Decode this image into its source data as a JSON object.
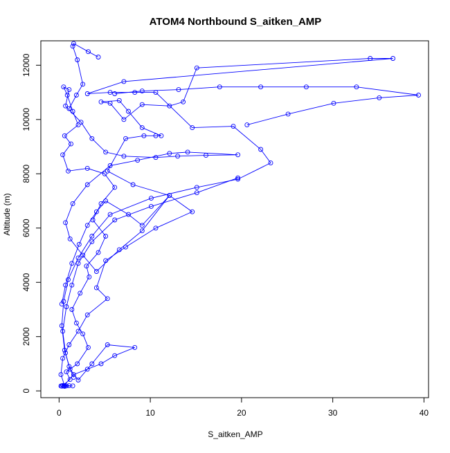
{
  "chart_data": {
    "type": "scatter",
    "title": "ATOM4 Northbound S_aitken_AMP",
    "xlabel": "S_aitken_AMP",
    "ylabel": "Altitude (m)",
    "xlim": [
      -2.0,
      40.5
    ],
    "ylim": [
      -250,
      12900
    ],
    "xticks": [
      0,
      10,
      20,
      30,
      40
    ],
    "yticks": [
      0,
      2000,
      4000,
      6000,
      8000,
      10000,
      12000
    ],
    "x_tick_labels": [
      "0",
      "10",
      "20",
      "30",
      "40"
    ],
    "y_tick_labels": [
      "0",
      "2000",
      "4000",
      "6000",
      "8000",
      "10000",
      "12000"
    ],
    "grid": false,
    "legend": "none",
    "color": "#0000ff",
    "marker": "open-circle",
    "connected": true,
    "series": [
      {
        "points": [
          [
            0.2,
            180
          ],
          [
            1.1,
            190
          ],
          [
            0.6,
            170
          ],
          [
            1.5,
            185
          ],
          [
            0.4,
            200
          ],
          [
            1.2,
            420
          ],
          [
            0.8,
            700
          ],
          [
            2.0,
            1000
          ],
          [
            3.2,
            1600
          ],
          [
            2.6,
            2100
          ],
          [
            1.9,
            2500
          ],
          [
            1.4,
            3000
          ],
          [
            2.3,
            3600
          ],
          [
            3.3,
            4200
          ],
          [
            3.0,
            4600
          ],
          [
            4.3,
            5100
          ],
          [
            5.1,
            5700
          ],
          [
            3.7,
            6300
          ],
          [
            4.6,
            6900
          ],
          [
            6.1,
            7500
          ],
          [
            5.0,
            8000
          ],
          [
            3.1,
            8200
          ],
          [
            1.0,
            8100
          ],
          [
            0.4,
            8700
          ],
          [
            1.3,
            9100
          ],
          [
            0.6,
            9400
          ],
          [
            2.1,
            9800
          ],
          [
            1.5,
            10300
          ],
          [
            0.9,
            10900
          ],
          [
            0.5,
            11200
          ],
          [
            1.1,
            11100
          ],
          [
            0.7,
            10500
          ],
          [
            2.4,
            9900
          ],
          [
            3.6,
            9300
          ],
          [
            5.1,
            8800
          ],
          [
            7.1,
            8650
          ],
          [
            10.6,
            8600
          ],
          [
            13.0,
            8650
          ],
          [
            16.1,
            8680
          ],
          [
            19.6,
            8700
          ],
          [
            14.1,
            8800
          ],
          [
            12.1,
            8750
          ],
          [
            8.6,
            8500
          ],
          [
            5.6,
            8300
          ],
          [
            3.1,
            7600
          ],
          [
            1.5,
            6900
          ],
          [
            0.7,
            6200
          ],
          [
            1.2,
            5600
          ],
          [
            2.6,
            5000
          ],
          [
            4.1,
            4400
          ],
          [
            6.6,
            5200
          ],
          [
            9.1,
            5900
          ],
          [
            12.1,
            7200
          ],
          [
            8.1,
            7600
          ],
          [
            5.3,
            8100
          ],
          [
            7.3,
            9300
          ],
          [
            9.3,
            9400
          ],
          [
            10.6,
            9400
          ],
          [
            11.2,
            9400
          ],
          [
            9.1,
            9700
          ],
          [
            7.6,
            10300
          ],
          [
            6.6,
            10700
          ],
          [
            4.6,
            10650
          ],
          [
            5.6,
            10600
          ],
          [
            7.1,
            10000
          ],
          [
            9.1,
            10550
          ],
          [
            12.1,
            10500
          ],
          [
            13.6,
            10650
          ],
          [
            15.1,
            11900
          ],
          [
            34.1,
            12250
          ],
          [
            36.6,
            12250
          ],
          [
            7.1,
            11400
          ],
          [
            3.1,
            10950
          ],
          [
            5.6,
            11000
          ],
          [
            8.3,
            11000
          ],
          [
            10.6,
            11000
          ],
          [
            14.6,
            9700
          ],
          [
            19.1,
            9750
          ],
          [
            22.1,
            8900
          ],
          [
            23.2,
            8400
          ],
          [
            19.6,
            7800
          ],
          [
            15.1,
            7500
          ],
          [
            10.1,
            7100
          ],
          [
            5.6,
            6500
          ],
          [
            3.6,
            5700
          ],
          [
            2.1,
            4900
          ],
          [
            1.0,
            4100
          ],
          [
            0.5,
            3300
          ],
          [
            0.3,
            2400
          ],
          [
            0.6,
            1500
          ],
          [
            1.2,
            800
          ],
          [
            2.1,
            400
          ],
          [
            3.6,
            1000
          ],
          [
            5.3,
            1700
          ],
          [
            8.3,
            1600
          ],
          [
            6.1,
            1300
          ],
          [
            4.6,
            1000
          ],
          [
            3.1,
            800
          ],
          [
            1.6,
            600
          ],
          [
            0.5,
            180
          ],
          [
            0.8,
            185
          ],
          [
            0.3,
            175
          ]
        ]
      },
      {
        "points": [
          [
            0.3,
            3200
          ],
          [
            0.7,
            3900
          ],
          [
            1.4,
            4700
          ],
          [
            2.2,
            5400
          ],
          [
            3.1,
            6100
          ],
          [
            4.1,
            6600
          ],
          [
            5.1,
            7000
          ],
          [
            7.6,
            6500
          ],
          [
            9.1,
            6100
          ],
          [
            12.1,
            7200
          ],
          [
            14.6,
            6600
          ],
          [
            10.6,
            6000
          ],
          [
            7.3,
            5300
          ],
          [
            5.1,
            4800
          ],
          [
            4.1,
            3800
          ],
          [
            5.3,
            3400
          ],
          [
            3.1,
            2800
          ],
          [
            2.1,
            2200
          ],
          [
            1.1,
            1700
          ],
          [
            0.4,
            1200
          ],
          [
            0.2,
            600
          ],
          [
            0.6,
            190
          ]
        ]
      },
      {
        "points": [
          [
            20.6,
            9800
          ],
          [
            25.1,
            10200
          ],
          [
            30.1,
            10600
          ],
          [
            35.1,
            10800
          ],
          [
            39.4,
            10900
          ],
          [
            32.6,
            11200
          ],
          [
            27.1,
            11200
          ],
          [
            22.1,
            11200
          ],
          [
            17.6,
            11200
          ],
          [
            13.1,
            11100
          ],
          [
            9.1,
            11050
          ],
          [
            6.1,
            10950
          ]
        ]
      },
      {
        "points": [
          [
            4.3,
            12300
          ],
          [
            3.2,
            12500
          ],
          [
            1.6,
            12800
          ],
          [
            1.5,
            12700
          ],
          [
            2.0,
            12200
          ],
          [
            2.6,
            11300
          ],
          [
            1.9,
            10900
          ],
          [
            1.1,
            10400
          ]
        ]
      },
      {
        "points": [
          [
            19.6,
            7850
          ],
          [
            15.1,
            7300
          ],
          [
            10.1,
            6800
          ],
          [
            6.1,
            6300
          ],
          [
            3.6,
            5500
          ],
          [
            2.1,
            4700
          ],
          [
            1.4,
            3900
          ],
          [
            0.8,
            3100
          ],
          [
            0.4,
            2200
          ],
          [
            0.7,
            1400
          ],
          [
            1.1,
            900
          ],
          [
            1.6,
            500
          ]
        ]
      }
    ]
  }
}
